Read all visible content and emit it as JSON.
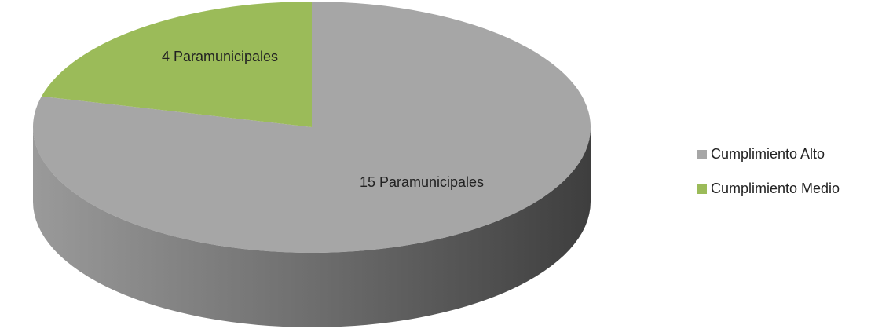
{
  "chart_data": {
    "type": "pie",
    "categories": [
      "Cumplimiento Alto",
      "Cumplimiento Medio"
    ],
    "values": [
      15,
      4
    ],
    "value_labels": [
      "15 Paramunicipales",
      "4 Paramunicipales"
    ],
    "colors": [
      "#a6a6a6",
      "#9bbb59"
    ],
    "legend": "right"
  }
}
